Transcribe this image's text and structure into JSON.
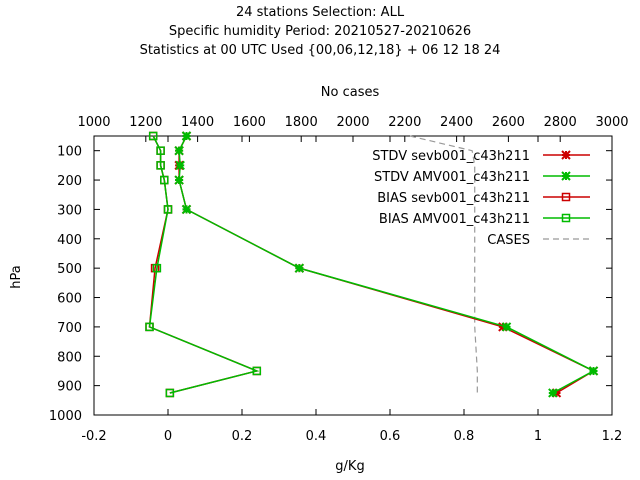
{
  "chart_data": {
    "type": "line",
    "title_lines": [
      "24 stations Selection: ALL",
      "Specific humidity  Period: 20210527-20210626",
      "Statistics at 00 UTC  Used {00,06,12,18} + 06 12 18 24"
    ],
    "x2label": "No cases",
    "xlabel": "g/Kg",
    "ylabel": "hPa",
    "xlim": [
      -0.2,
      1.2
    ],
    "x2lim": [
      1000,
      3000
    ],
    "ylim": [
      1000,
      50
    ],
    "x_ticks": [
      "-0.2",
      "0",
      "0.2",
      "0.4",
      "0.6",
      "0.8",
      "1",
      "1.2"
    ],
    "x2_ticks": [
      "1000",
      "1200",
      "1400",
      "1600",
      "1800",
      "2000",
      "2200",
      "2400",
      "2600",
      "2800",
      "3000"
    ],
    "y_ticks": [
      "100",
      "200",
      "300",
      "400",
      "500",
      "600",
      "700",
      "800",
      "900",
      "1000"
    ],
    "legend_position": "top-right",
    "grid": false,
    "series": [
      {
        "name": "STDV sevb001_c43h211",
        "color": "#cc0000",
        "marker": "star",
        "x": [
          0.05,
          0.03,
          0.03,
          0.03,
          0.05,
          0.355,
          0.905,
          1.15,
          1.05
        ],
        "y": [
          50,
          100,
          150,
          200,
          300,
          500,
          700,
          850,
          925
        ]
      },
      {
        "name": "STDV AMV001_c43h211",
        "color": "#00bb00",
        "marker": "star",
        "x": [
          0.05,
          0.03,
          0.033,
          0.03,
          0.05,
          0.355,
          0.915,
          1.15,
          1.04
        ],
        "y": [
          50,
          100,
          150,
          200,
          300,
          500,
          700,
          850,
          925
        ]
      },
      {
        "name": "BIAS sevb001_c43h211",
        "color": "#cc0000",
        "marker": "square",
        "x": [
          -0.04,
          -0.02,
          -0.02,
          -0.01,
          0.0,
          -0.035,
          -0.05,
          0.24,
          0.005
        ],
        "y": [
          50,
          100,
          150,
          200,
          300,
          500,
          700,
          850,
          925
        ]
      },
      {
        "name": "BIAS AMV001_c43h211",
        "color": "#00bb00",
        "marker": "square",
        "x": [
          -0.04,
          -0.02,
          -0.02,
          -0.01,
          0.0,
          -0.03,
          -0.05,
          0.24,
          0.005
        ],
        "y": [
          50,
          100,
          150,
          200,
          300,
          500,
          700,
          850,
          925
        ]
      },
      {
        "name": "CASES",
        "color": "#999999",
        "marker": "none",
        "dashed": true,
        "x2": [
          2220,
          2460,
          2470,
          2470,
          2470,
          2470,
          2470,
          2480,
          2480,
          2480
        ],
        "y": [
          50,
          100,
          150,
          200,
          300,
          500,
          700,
          850,
          900,
          925
        ]
      }
    ]
  }
}
